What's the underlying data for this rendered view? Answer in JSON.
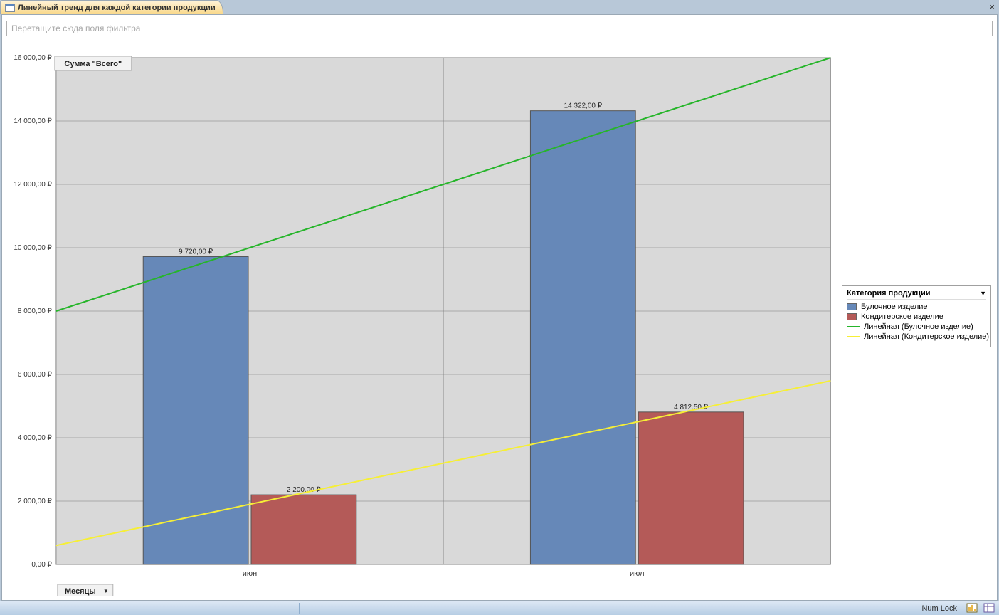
{
  "window": {
    "tab_title": "Линейный тренд для каждой категории продукции",
    "close_tooltip": "Закрыть"
  },
  "filterbar": {
    "placeholder": "Перетащите сюда поля фильтра"
  },
  "chart": {
    "type": "bar+trend",
    "title_badge": "Сумма \"Всего\"",
    "x_badge": "Месяцы",
    "categories": [
      "июн",
      "июл"
    ],
    "series": [
      {
        "name": "Булочное изделие",
        "color": "#6688b8",
        "values": [
          9720.0,
          14322.0
        ],
        "labels": [
          "9 720,00 ₽",
          "14 322,00 ₽"
        ]
      },
      {
        "name": "Кондитерское изделие",
        "color": "#b45a58",
        "values": [
          2200.0,
          4812.5
        ],
        "labels": [
          "2 200,00 ₽",
          "4 812,50 ₽"
        ]
      }
    ],
    "trend_lines": [
      {
        "name": "Линейная (Булочное изделие)",
        "color": "#26b52a",
        "y1": 8000,
        "y2": 16000
      },
      {
        "name": "Линейная (Кондитерское изделие)",
        "color": "#f6ef36",
        "y1": 600,
        "y2": 5800
      }
    ],
    "y_axis": {
      "min": 0,
      "max": 16000,
      "step": 2000,
      "tick_labels": [
        "0,00 ₽",
        "2 000,00 ₽",
        "4 000,00 ₽",
        "6 000,00 ₽",
        "8 000,00 ₽",
        "10 000,00 ₽",
        "12 000,00 ₽",
        "14 000,00 ₽",
        "16 000,00 ₽"
      ]
    },
    "plot_bg": "#d9d9d9",
    "grid_color": "#7a7a7a",
    "outer_border_color": "#888888",
    "label_fontsize": 10,
    "bar_border_color": "#555555",
    "trend_line_width": 2
  },
  "legend": {
    "title": "Категория продукции"
  },
  "statusbar": {
    "numlock": "Num Lock"
  }
}
